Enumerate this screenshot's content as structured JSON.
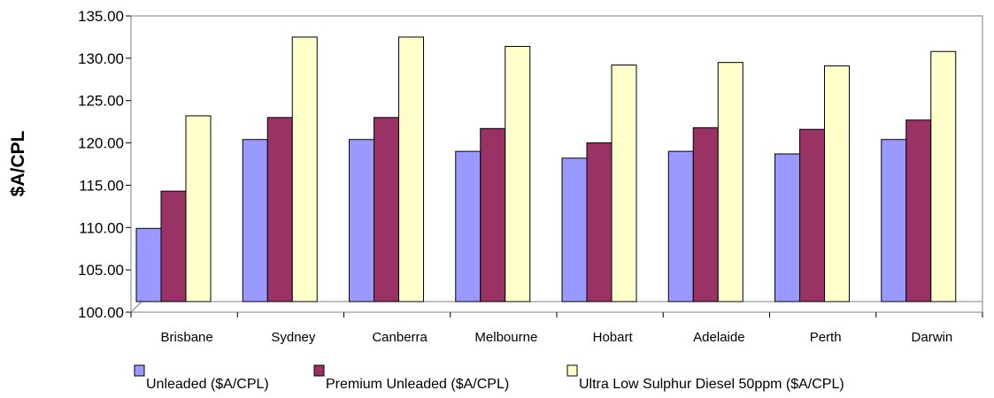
{
  "chart_data": {
    "type": "bar",
    "title": "",
    "xlabel": "",
    "ylabel": "$A/CPL",
    "ylim": [
      100,
      135
    ],
    "yticks": [
      100,
      105,
      110,
      115,
      120,
      125,
      130,
      135
    ],
    "ytick_labels": [
      "100.00",
      "105.00",
      "110.00",
      "115.00",
      "120.00",
      "125.00",
      "130.00",
      "135.00"
    ],
    "grid": false,
    "legend_position": "bottom",
    "categories": [
      "Brisbane",
      "Sydney",
      "Canberra",
      "Melbourne",
      "Hobart",
      "Adelaide",
      "Perth",
      "Darwin"
    ],
    "series": [
      {
        "name": "Unleaded ($A/CPL)",
        "color": "#9999ff",
        "values": [
          109.9,
          120.4,
          120.4,
          119.0,
          118.2,
          119.0,
          118.7,
          120.4
        ]
      },
      {
        "name": "Premium Unleaded ($A/CPL)",
        "color": "#993366",
        "values": [
          114.3,
          123.0,
          123.0,
          121.7,
          120.0,
          121.8,
          121.6,
          122.7
        ]
      },
      {
        "name": "Ultra Low Sulphur Diesel 50ppm ($A/CPL)",
        "color": "#ffffcc",
        "values": [
          123.2,
          132.5,
          132.5,
          131.4,
          129.2,
          129.5,
          129.1,
          130.8
        ]
      }
    ]
  }
}
